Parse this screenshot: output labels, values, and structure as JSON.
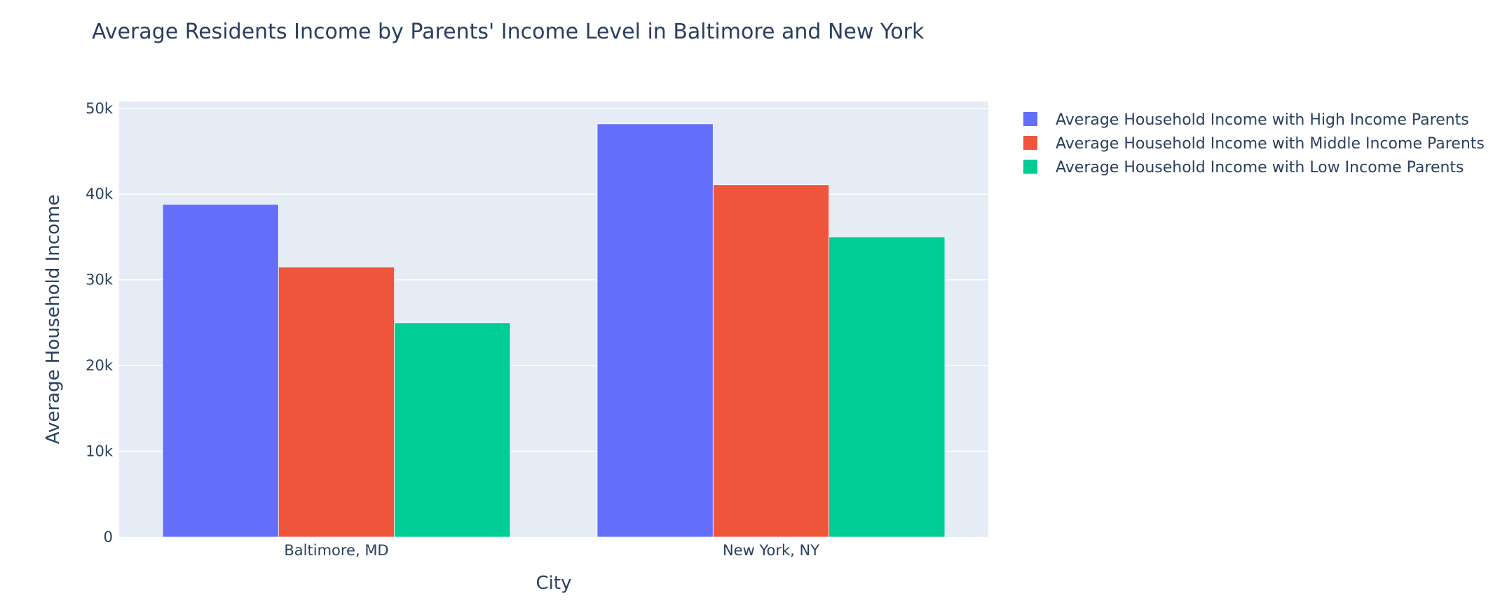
{
  "chart_data": {
    "type": "bar",
    "title": "Average Residents Income by Parents' Income Level in Baltimore and New York",
    "xlabel": "City",
    "ylabel": "Average Household Income",
    "categories": [
      "Baltimore, MD",
      "New York, NY"
    ],
    "series": [
      {
        "name": "Average Household Income with High Income Parents",
        "values": [
          38800,
          48200
        ],
        "color": "#636efa"
      },
      {
        "name": "Average Household Income with Middle Income Parents",
        "values": [
          31500,
          41100
        ],
        "color": "#ef553b"
      },
      {
        "name": "Average Household Income with Low Income Parents",
        "values": [
          25000,
          35000
        ],
        "color": "#00cc96"
      }
    ],
    "ylim": [
      0,
      50800
    ],
    "yticks": [
      0,
      10000,
      20000,
      30000,
      40000,
      50000
    ],
    "ytick_labels": [
      "0",
      "10k",
      "20k",
      "30k",
      "40k",
      "50k"
    ],
    "grid": true,
    "legend_position": "top-right",
    "plot_background": "#e5ecf6"
  }
}
